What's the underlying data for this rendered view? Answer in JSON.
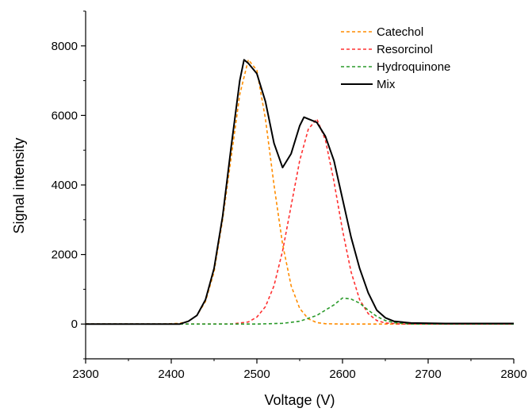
{
  "chart_data": {
    "type": "line",
    "xlabel": "Voltage (V)",
    "ylabel": "Signal intensity",
    "xlim": [
      2300,
      2800
    ],
    "ylim": [
      -1000,
      9000
    ],
    "xticks": [
      2300,
      2400,
      2500,
      2600,
      2700,
      2800
    ],
    "yticks": [
      0,
      2000,
      4000,
      6000,
      8000
    ],
    "grid": false,
    "legend_position": "top-right",
    "series": [
      {
        "name": "Catechol",
        "style": "dashed",
        "color": "#ff8c00",
        "points": [
          [
            2300,
            0
          ],
          [
            2390,
            0
          ],
          [
            2410,
            20
          ],
          [
            2420,
            80
          ],
          [
            2430,
            250
          ],
          [
            2440,
            650
          ],
          [
            2450,
            1500
          ],
          [
            2460,
            3000
          ],
          [
            2470,
            4800
          ],
          [
            2480,
            6600
          ],
          [
            2490,
            7600
          ],
          [
            2500,
            7300
          ],
          [
            2510,
            5900
          ],
          [
            2520,
            4000
          ],
          [
            2530,
            2300
          ],
          [
            2540,
            1100
          ],
          [
            2550,
            450
          ],
          [
            2560,
            150
          ],
          [
            2570,
            40
          ],
          [
            2580,
            10
          ],
          [
            2600,
            0
          ],
          [
            2800,
            0
          ]
        ]
      },
      {
        "name": "Resorcinol",
        "style": "dashed",
        "color": "#ff3030",
        "points": [
          [
            2300,
            0
          ],
          [
            2470,
            0
          ],
          [
            2490,
            60
          ],
          [
            2500,
            200
          ],
          [
            2510,
            500
          ],
          [
            2520,
            1100
          ],
          [
            2530,
            2100
          ],
          [
            2540,
            3400
          ],
          [
            2550,
            4700
          ],
          [
            2560,
            5600
          ],
          [
            2570,
            5900
          ],
          [
            2580,
            5300
          ],
          [
            2590,
            4100
          ],
          [
            2600,
            2700
          ],
          [
            2610,
            1500
          ],
          [
            2620,
            700
          ],
          [
            2630,
            300
          ],
          [
            2640,
            100
          ],
          [
            2650,
            30
          ],
          [
            2670,
            0
          ],
          [
            2800,
            0
          ]
        ]
      },
      {
        "name": "Hydroquinone",
        "style": "dashed",
        "color": "#2a9a2a",
        "points": [
          [
            2300,
            0
          ],
          [
            2500,
            0
          ],
          [
            2530,
            20
          ],
          [
            2550,
            80
          ],
          [
            2570,
            250
          ],
          [
            2590,
            550
          ],
          [
            2600,
            750
          ],
          [
            2610,
            720
          ],
          [
            2620,
            600
          ],
          [
            2630,
            400
          ],
          [
            2640,
            220
          ],
          [
            2650,
            100
          ],
          [
            2660,
            40
          ],
          [
            2680,
            0
          ],
          [
            2800,
            0
          ]
        ]
      },
      {
        "name": "Mix",
        "style": "solid",
        "color": "#000000",
        "points": [
          [
            2300,
            0
          ],
          [
            2410,
            0
          ],
          [
            2420,
            80
          ],
          [
            2430,
            250
          ],
          [
            2440,
            700
          ],
          [
            2450,
            1600
          ],
          [
            2460,
            3100
          ],
          [
            2470,
            5100
          ],
          [
            2480,
            7000
          ],
          [
            2485,
            7600
          ],
          [
            2490,
            7500
          ],
          [
            2500,
            7200
          ],
          [
            2510,
            6400
          ],
          [
            2520,
            5200
          ],
          [
            2530,
            4500
          ],
          [
            2540,
            4900
          ],
          [
            2550,
            5700
          ],
          [
            2555,
            5950
          ],
          [
            2560,
            5900
          ],
          [
            2570,
            5800
          ],
          [
            2580,
            5400
          ],
          [
            2590,
            4700
          ],
          [
            2600,
            3600
          ],
          [
            2610,
            2500
          ],
          [
            2620,
            1600
          ],
          [
            2630,
            900
          ],
          [
            2640,
            400
          ],
          [
            2650,
            180
          ],
          [
            2660,
            80
          ],
          [
            2680,
            30
          ],
          [
            2720,
            15
          ],
          [
            2800,
            15
          ]
        ]
      }
    ]
  }
}
